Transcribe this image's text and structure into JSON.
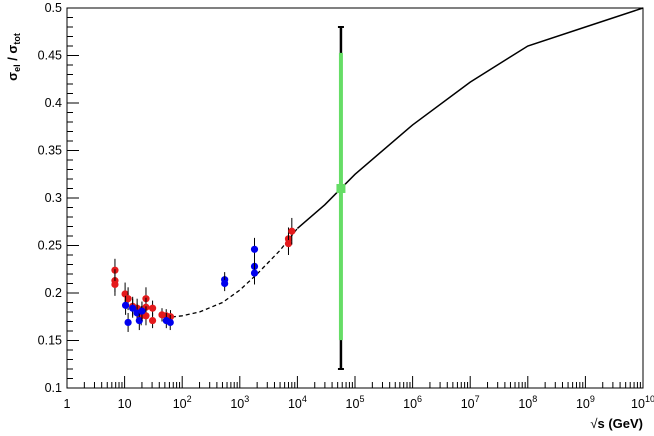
{
  "chart_data": {
    "type": "scatter",
    "x_axis": {
      "scale": "log10",
      "range": [
        1,
        10000000000
      ],
      "ticks": [
        {
          "value": 1,
          "label": "1",
          "sup": ""
        },
        {
          "value": 10,
          "label": "10",
          "sup": ""
        },
        {
          "value": 100,
          "label": "10",
          "sup": "2"
        },
        {
          "value": 1000,
          "label": "10",
          "sup": "3"
        },
        {
          "value": 10000,
          "label": "10",
          "sup": "4"
        },
        {
          "value": 100000,
          "label": "10",
          "sup": "5"
        },
        {
          "value": 1000000,
          "label": "10",
          "sup": "6"
        },
        {
          "value": 10000000,
          "label": "10",
          "sup": "7"
        },
        {
          "value": 100000000,
          "label": "10",
          "sup": "8"
        },
        {
          "value": 1000000000,
          "label": "10",
          "sup": "9"
        },
        {
          "value": 10000000000,
          "label": "10",
          "sup": "10"
        }
      ],
      "title": {
        "main": "s (GeV)",
        "root_symbol": "√"
      }
    },
    "y_axis": {
      "scale": "linear",
      "range": [
        0.1,
        0.5
      ],
      "ticks": [
        "0.1",
        "0.15",
        "0.2",
        "0.25",
        "0.3",
        "0.35",
        "0.4",
        "0.45",
        "0.5"
      ],
      "title": {
        "num": "σ",
        "num_sub": "el",
        "sep": " / ",
        "den": "σ",
        "den_sub": "tot"
      }
    },
    "grid": false,
    "legend": "none",
    "series": [
      {
        "color": "#e41a1c",
        "points": [
          {
            "x": 6.8,
            "y": 0.224,
            "err": 0.012
          },
          {
            "x": 6.8,
            "y": 0.213,
            "err": 0.012
          },
          {
            "x": 6.8,
            "y": 0.209,
            "err": 0.012
          },
          {
            "x": 10.2,
            "y": 0.199,
            "err": 0.012
          },
          {
            "x": 11.5,
            "y": 0.194,
            "err": 0.012
          },
          {
            "x": 13.8,
            "y": 0.186,
            "err": 0.01
          },
          {
            "x": 16.5,
            "y": 0.184,
            "err": 0.01
          },
          {
            "x": 19.4,
            "y": 0.176,
            "err": 0.01
          },
          {
            "x": 23.5,
            "y": 0.194,
            "err": 0.012
          },
          {
            "x": 23.5,
            "y": 0.185,
            "err": 0.01
          },
          {
            "x": 23.5,
            "y": 0.176,
            "err": 0.01
          },
          {
            "x": 30.6,
            "y": 0.184,
            "err": 0.008
          },
          {
            "x": 30.6,
            "y": 0.171,
            "err": 0.008
          },
          {
            "x": 44.6,
            "y": 0.177,
            "err": 0.007
          },
          {
            "x": 52.8,
            "y": 0.176,
            "err": 0.007
          },
          {
            "x": 62.7,
            "y": 0.175,
            "err": 0.007
          },
          {
            "x": 7000,
            "y": 0.257,
            "err": 0.012
          },
          {
            "x": 7000,
            "y": 0.252,
            "err": 0.012
          },
          {
            "x": 8000,
            "y": 0.265,
            "err": 0.014
          }
        ]
      },
      {
        "color": "#0000ee",
        "points": [
          {
            "x": 10.4,
            "y": 0.187,
            "err": 0.01
          },
          {
            "x": 11.5,
            "y": 0.169,
            "err": 0.01
          },
          {
            "x": 13.8,
            "y": 0.184,
            "err": 0.01
          },
          {
            "x": 16.5,
            "y": 0.179,
            "err": 0.01
          },
          {
            "x": 18.0,
            "y": 0.171,
            "err": 0.01
          },
          {
            "x": 20.0,
            "y": 0.181,
            "err": 0.01
          },
          {
            "x": 53.0,
            "y": 0.171,
            "err": 0.008
          },
          {
            "x": 62.0,
            "y": 0.169,
            "err": 0.008
          },
          {
            "x": 546,
            "y": 0.214,
            "err": 0.008
          },
          {
            "x": 546,
            "y": 0.21,
            "err": 0.008
          },
          {
            "x": 1800,
            "y": 0.246,
            "err": 0.012
          },
          {
            "x": 1800,
            "y": 0.228,
            "err": 0.012
          },
          {
            "x": 1800,
            "y": 0.221,
            "err": 0.012
          }
        ]
      },
      {
        "color": "#66dd66",
        "points": [
          {
            "x": 57000,
            "y": 0.31,
            "err_hi": 0.17,
            "err_lo": 0.19
          }
        ]
      }
    ],
    "curve": {
      "color": "#000000",
      "dashed_until_x": 10000,
      "points": [
        [
          50,
          0.175
        ],
        [
          70,
          0.175
        ],
        [
          100,
          0.176
        ],
        [
          200,
          0.18
        ],
        [
          500,
          0.19
        ],
        [
          1000,
          0.203
        ],
        [
          2000,
          0.22
        ],
        [
          5000,
          0.245
        ],
        [
          10000,
          0.268
        ],
        [
          30000,
          0.293
        ],
        [
          100000,
          0.325
        ],
        [
          1000000,
          0.377
        ],
        [
          10000000,
          0.422
        ],
        [
          100000000,
          0.46
        ],
        [
          1000000000,
          0.48
        ],
        [
          10000000000,
          0.5
        ]
      ]
    }
  }
}
